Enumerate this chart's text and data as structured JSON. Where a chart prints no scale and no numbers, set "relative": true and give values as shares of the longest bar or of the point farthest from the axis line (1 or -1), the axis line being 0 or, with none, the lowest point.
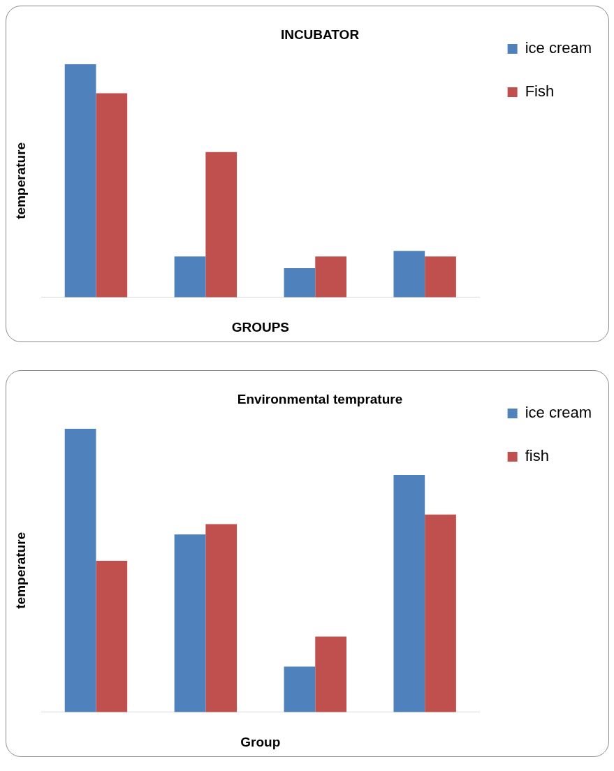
{
  "chart_data": [
    {
      "type": "bar",
      "title": "INCUBATOR",
      "xlabel": "GROUPS",
      "ylabel": "temperature",
      "categories": [
        null,
        null,
        null,
        null
      ],
      "relative": true,
      "legend": "right",
      "series": [
        {
          "name": "ice cream",
          "color": "#4f81bd",
          "values": [
            1,
            0.175,
            0.125,
            0.199
          ]
        },
        {
          "name": "Fish",
          "color": "#c0504d",
          "values": [
            0.875,
            0.623,
            0.175,
            0.175
          ]
        }
      ]
    },
    {
      "type": "bar",
      "title": "Environmental temprature",
      "xlabel": "Group",
      "ylabel": "temperature",
      "categories": [
        null,
        null,
        null,
        null
      ],
      "relative": true,
      "legend": "right",
      "series": [
        {
          "name": "ice cream",
          "color": "#4f81bd",
          "values": [
            1,
            0.627,
            0.161,
            0.837
          ]
        },
        {
          "name": "fish",
          "color": "#c0504d",
          "values": [
            0.534,
            0.663,
            0.267,
            0.697
          ]
        }
      ]
    }
  ]
}
